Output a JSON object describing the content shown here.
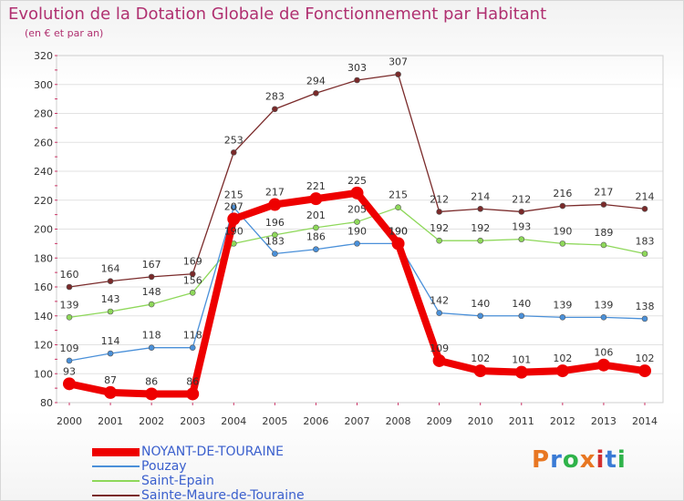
{
  "header": {
    "title": "Evolution de la Dotation Globale de Fonctionnement par Habitant",
    "subtitle": "(en € et par an)"
  },
  "logo": {
    "text": "Proxiti",
    "colors": [
      "#e87722",
      "#3a7bd5",
      "#2fb34a",
      "#e87722",
      "#d22f2f",
      "#3a7bd5",
      "#2fb34a"
    ]
  },
  "chart_data": {
    "type": "line",
    "title": "Evolution de la Dotation Globale de Fonctionnement par Habitant",
    "subtitle": "(en € et par an)",
    "xlabel": "",
    "ylabel": "",
    "ylim": [
      80,
      320
    ],
    "yticks": [
      80,
      100,
      120,
      140,
      160,
      180,
      200,
      220,
      240,
      260,
      280,
      300,
      320
    ],
    "grid": true,
    "legend_position": "bottom-left",
    "categories": [
      "2000",
      "2001",
      "2002",
      "2003",
      "2004",
      "2005",
      "2006",
      "2007",
      "2008",
      "2009",
      "2010",
      "2011",
      "2012",
      "2013",
      "2014"
    ],
    "series": [
      {
        "name": "NOYANT-DE-TOURAINE",
        "color": "#ee0000",
        "values": [
          93,
          87,
          86,
          86,
          207,
          217,
          221,
          225,
          190,
          109,
          102,
          101,
          102,
          106,
          102
        ]
      },
      {
        "name": "Pouzay",
        "color": "#4a90d9",
        "values": [
          109,
          114,
          118,
          118,
          215,
          183,
          186,
          190,
          190,
          142,
          140,
          140,
          139,
          139,
          138
        ]
      },
      {
        "name": "Saint-Epain",
        "color": "#8ed85a",
        "values": [
          139,
          143,
          148,
          156,
          190,
          196,
          201,
          205,
          215,
          192,
          192,
          193,
          190,
          189,
          183
        ]
      },
      {
        "name": "Sainte-Maure-de-Touraine",
        "color": "#7a2a2a",
        "values": [
          160,
          164,
          167,
          169,
          253,
          283,
          294,
          303,
          307,
          212,
          214,
          212,
          216,
          217,
          214
        ]
      }
    ]
  }
}
